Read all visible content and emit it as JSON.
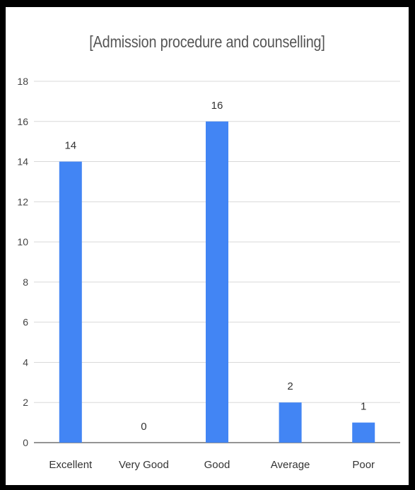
{
  "chart_data": {
    "type": "bar",
    "title": "[Admission procedure and counselling]",
    "xlabel": "",
    "ylabel": "",
    "categories": [
      "Excellent",
      "Very Good",
      "Good",
      "Average",
      "Poor"
    ],
    "values": [
      14,
      0,
      16,
      2,
      1
    ],
    "ylim": [
      0,
      18
    ],
    "yticks": [
      0,
      2,
      4,
      6,
      8,
      10,
      12,
      14,
      16,
      18
    ],
    "data_labels": true,
    "grid": true,
    "bar_color": "#4285f4",
    "grid_color": "#d9d9d9"
  }
}
